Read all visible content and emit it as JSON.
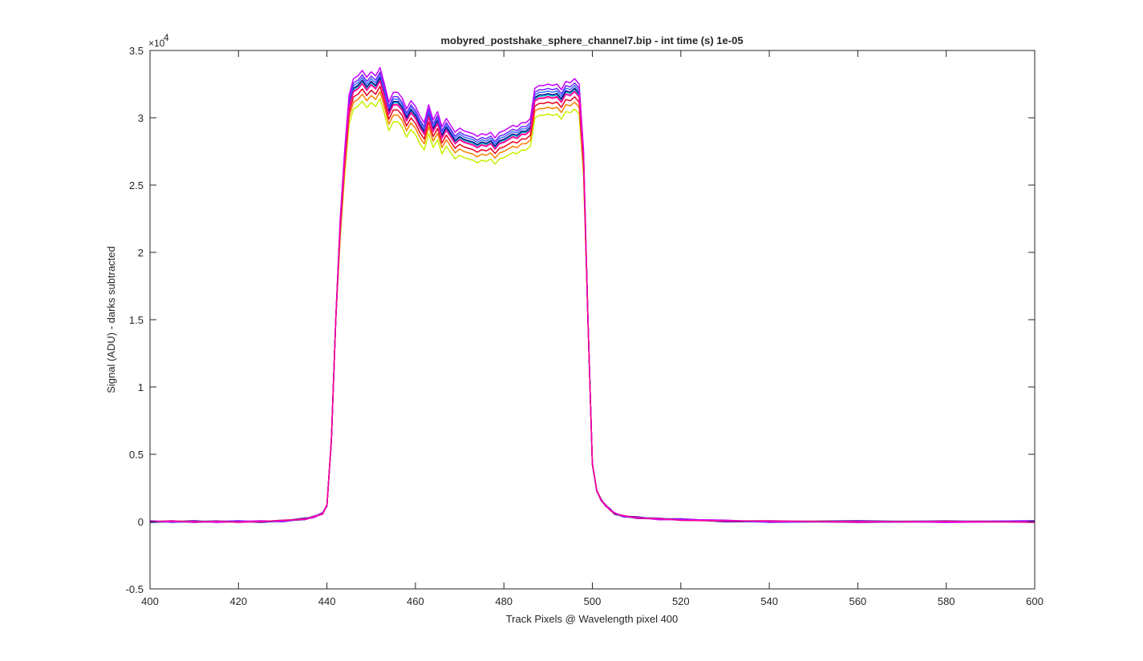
{
  "chart_data": {
    "type": "line",
    "title": "mobyred_postshake_sphere_channel7.bip - int time (s) 1e-05",
    "xlabel": "Track Pixels @ Wavelength pixel 400",
    "ylabel": "Signal (ADU) - darks subtracted",
    "xlim": [
      400,
      600
    ],
    "ylim": [
      -5000,
      35000
    ],
    "y_exponent_label": "×10",
    "y_exponent_power": "4",
    "grid": false,
    "legend": "none",
    "xticks": [
      400,
      420,
      440,
      460,
      480,
      500,
      520,
      540,
      560,
      580,
      600
    ],
    "xtick_labels": [
      "400",
      "420",
      "440",
      "460",
      "480",
      "500",
      "520",
      "540",
      "560",
      "580",
      "600"
    ],
    "yticks": [
      -5000,
      0,
      5000,
      10000,
      15000,
      20000,
      25000,
      30000,
      35000
    ],
    "ytick_labels": [
      "-0.5",
      "0",
      "0.5",
      "1",
      "1.5",
      "2",
      "2.5",
      "3",
      "3.5"
    ],
    "base_profile": {
      "x": [
        400,
        405,
        410,
        415,
        420,
        425,
        430,
        435,
        437,
        439,
        440,
        441,
        442,
        443,
        444,
        445,
        446,
        447,
        448,
        449,
        450,
        451,
        452,
        453,
        454,
        455,
        456,
        457,
        458,
        459,
        460,
        461,
        462,
        463,
        464,
        465,
        466,
        467,
        468,
        469,
        470,
        471,
        472,
        473,
        474,
        475,
        476,
        477,
        478,
        479,
        480,
        481,
        482,
        483,
        484,
        485,
        486,
        487,
        488,
        489,
        490,
        491,
        492,
        493,
        494,
        495,
        496,
        497,
        498,
        499,
        500,
        501,
        502,
        503,
        504,
        505,
        507,
        510,
        515,
        520,
        530,
        540,
        560,
        580,
        600
      ],
      "y": [
        0,
        0,
        0,
        0,
        0,
        0,
        50,
        200,
        350,
        600,
        1200,
        6000,
        15000,
        22000,
        27000,
        31000,
        32200,
        32400,
        32800,
        32300,
        32700,
        32400,
        33000,
        31800,
        30500,
        31200,
        31200,
        30800,
        30000,
        30600,
        30200,
        29500,
        29000,
        30300,
        29200,
        29800,
        28700,
        29300,
        28800,
        28300,
        28600,
        28400,
        28300,
        28200,
        28000,
        28200,
        28100,
        28300,
        27900,
        28300,
        28400,
        28600,
        28800,
        28700,
        29000,
        29000,
        29300,
        31500,
        31700,
        31700,
        31800,
        31700,
        31800,
        31400,
        32000,
        31900,
        32200,
        31800,
        27000,
        15000,
        4300,
        2300,
        1600,
        1200,
        900,
        600,
        400,
        300,
        200,
        150,
        50,
        0,
        0,
        0,
        0
      ]
    },
    "series": [
      {
        "color": "#c8f000",
        "scale": 0.952
      },
      {
        "color": "#ff7f00",
        "scale": 0.968
      },
      {
        "color": "#e6001e",
        "scale": 0.98
      },
      {
        "color": "#ff5ad2",
        "scale": 0.991
      },
      {
        "color": "#00c8c8",
        "scale": 0.997
      },
      {
        "color": "#0a0a8c",
        "scale": 1.0
      },
      {
        "color": "#3c6eff",
        "scale": 1.006
      },
      {
        "color": "#6e28ff",
        "scale": 1.012
      },
      {
        "color": "#c800ff",
        "scale": 1.022
      },
      {
        "color": "#ff0090",
        "scale": 0.993
      }
    ]
  }
}
